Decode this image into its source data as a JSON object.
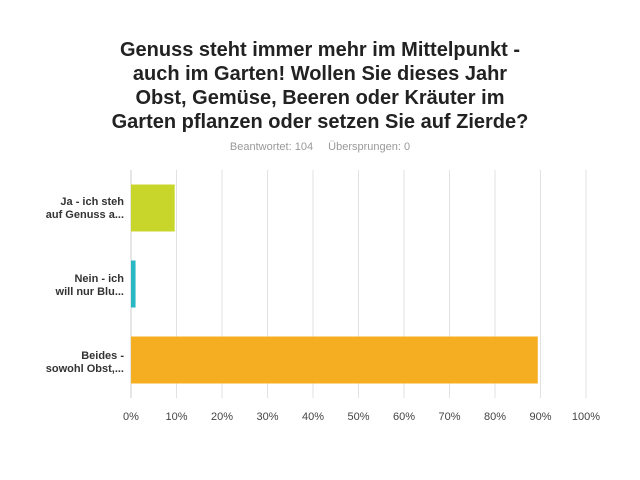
{
  "title": {
    "lines": [
      "Genuss steht immer mehr im Mittelpunkt -",
      "auch im Garten! Wollen Sie dieses Jahr",
      "Obst, Gemüse, Beeren oder Kräuter  im",
      "Garten pflanzen oder setzen Sie auf Zierde?"
    ]
  },
  "meta": {
    "answered": "Beantwortet: 104",
    "skipped": "Übersprungen: 0"
  },
  "chart_data": {
    "type": "bar",
    "orientation": "horizontal",
    "categories": [
      [
        "Ja - ich steh",
        "auf Genuss a..."
      ],
      [
        "Nein - ich",
        "will nur Blu..."
      ],
      [
        "Beides -",
        "sowohl Obst,..."
      ]
    ],
    "values": [
      9.6,
      1.0,
      89.4
    ],
    "colors": [
      "#c8d62b",
      "#2ab8c2",
      "#f5ae22"
    ],
    "xlim": [
      0,
      100
    ],
    "xticks": [
      "0%",
      "10%",
      "20%",
      "30%",
      "40%",
      "50%",
      "60%",
      "70%",
      "80%",
      "90%",
      "100%"
    ],
    "grid": true,
    "legend": "none"
  }
}
